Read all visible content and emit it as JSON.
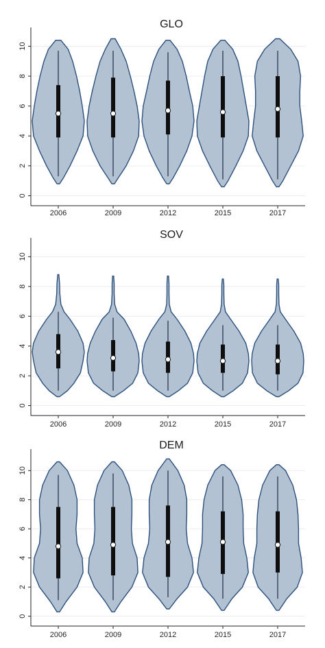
{
  "chart_data": [
    {
      "type": "violin",
      "title": "GLO",
      "categories": [
        "2006",
        "2009",
        "2012",
        "2015",
        "2017"
      ],
      "yticks": [
        "0",
        "2",
        "4",
        "6",
        "8",
        "10"
      ],
      "ylim": [
        -0.3,
        10.8
      ],
      "grid": true,
      "series": [
        {
          "min": 0.8,
          "max": 10.4,
          "whisker_low": 1.3,
          "whisker_high": 9.7,
          "q1": 3.9,
          "median": 5.5,
          "q3": 7.4,
          "density": [
            [
              0.8,
              0.05
            ],
            [
              1.2,
              0.2
            ],
            [
              2,
              0.45
            ],
            [
              3,
              0.72
            ],
            [
              4,
              0.95
            ],
            [
              5,
              1.0
            ],
            [
              6,
              0.92
            ],
            [
              7,
              0.82
            ],
            [
              8,
              0.7
            ],
            [
              9,
              0.55
            ],
            [
              9.8,
              0.38
            ],
            [
              10.4,
              0.1
            ]
          ]
        },
        {
          "min": 0.8,
          "max": 10.5,
          "whisker_low": 1.3,
          "whisker_high": 9.7,
          "q1": 3.9,
          "median": 5.5,
          "q3": 7.9,
          "density": [
            [
              0.8,
              0.05
            ],
            [
              1.2,
              0.2
            ],
            [
              2,
              0.5
            ],
            [
              3,
              0.78
            ],
            [
              4,
              0.98
            ],
            [
              5,
              1.0
            ],
            [
              6,
              0.92
            ],
            [
              7,
              0.8
            ],
            [
              8,
              0.66
            ],
            [
              9,
              0.5
            ],
            [
              9.8,
              0.3
            ],
            [
              10.5,
              0.08
            ]
          ]
        },
        {
          "min": 0.8,
          "max": 10.4,
          "whisker_low": 1.3,
          "whisker_high": 9.6,
          "q1": 4.1,
          "median": 5.7,
          "q3": 7.7,
          "density": [
            [
              0.8,
              0.05
            ],
            [
              1.2,
              0.2
            ],
            [
              2,
              0.45
            ],
            [
              3,
              0.72
            ],
            [
              4,
              0.92
            ],
            [
              5,
              1.0
            ],
            [
              6,
              0.95
            ],
            [
              7,
              0.82
            ],
            [
              8,
              0.7
            ],
            [
              9,
              0.55
            ],
            [
              9.8,
              0.35
            ],
            [
              10.4,
              0.08
            ]
          ]
        },
        {
          "min": 0.6,
          "max": 10.4,
          "whisker_low": 1.1,
          "whisker_high": 9.7,
          "q1": 3.9,
          "median": 5.6,
          "q3": 8.0,
          "density": [
            [
              0.6,
              0.05
            ],
            [
              1,
              0.2
            ],
            [
              2,
              0.5
            ],
            [
              3,
              0.78
            ],
            [
              4,
              0.98
            ],
            [
              5,
              1.0
            ],
            [
              6,
              0.9
            ],
            [
              7,
              0.8
            ],
            [
              8,
              0.7
            ],
            [
              9,
              0.58
            ],
            [
              9.8,
              0.38
            ],
            [
              10.4,
              0.08
            ]
          ]
        },
        {
          "min": 0.6,
          "max": 10.5,
          "whisker_low": 1.1,
          "whisker_high": 9.7,
          "q1": 3.9,
          "median": 5.8,
          "q3": 8.0,
          "density": [
            [
              0.6,
              0.05
            ],
            [
              1,
              0.2
            ],
            [
              2,
              0.5
            ],
            [
              3,
              0.8
            ],
            [
              4,
              0.98
            ],
            [
              5,
              0.92
            ],
            [
              6,
              0.85
            ],
            [
              7,
              0.85
            ],
            [
              8,
              0.88
            ],
            [
              9,
              0.78
            ],
            [
              9.8,
              0.5
            ],
            [
              10.5,
              0.08
            ]
          ]
        }
      ]
    },
    {
      "type": "violin",
      "title": "SOV",
      "categories": [
        "2006",
        "2009",
        "2012",
        "2015",
        "2017"
      ],
      "yticks": [
        "0",
        "2",
        "4",
        "6",
        "8",
        "10"
      ],
      "ylim": [
        -0.3,
        10.8
      ],
      "grid": true,
      "series": [
        {
          "min": 0.6,
          "max": 8.8,
          "whisker_low": 1.0,
          "whisker_high": 6.3,
          "q1": 2.5,
          "median": 3.6,
          "q3": 4.8,
          "density": [
            [
              0.6,
              0.05
            ],
            [
              1,
              0.35
            ],
            [
              1.5,
              0.6
            ],
            [
              2.2,
              0.85
            ],
            [
              3,
              0.95
            ],
            [
              3.6,
              1.0
            ],
            [
              4.2,
              0.95
            ],
            [
              5,
              0.75
            ],
            [
              5.8,
              0.45
            ],
            [
              6.3,
              0.22
            ],
            [
              6.8,
              0.1
            ],
            [
              7.5,
              0.06
            ],
            [
              8.2,
              0.05
            ],
            [
              8.8,
              0.02
            ]
          ]
        },
        {
          "min": 0.6,
          "max": 8.7,
          "whisker_low": 1.0,
          "whisker_high": 5.9,
          "q1": 2.3,
          "median": 3.2,
          "q3": 4.4,
          "density": [
            [
              0.6,
              0.05
            ],
            [
              1,
              0.4
            ],
            [
              1.5,
              0.75
            ],
            [
              2.2,
              0.95
            ],
            [
              3,
              1.0
            ],
            [
              3.5,
              0.98
            ],
            [
              4.2,
              0.88
            ],
            [
              5,
              0.68
            ],
            [
              5.8,
              0.42
            ],
            [
              6.3,
              0.15
            ],
            [
              6.8,
              0.06
            ],
            [
              7.5,
              0.04
            ],
            [
              8.2,
              0.04
            ],
            [
              8.7,
              0.02
            ]
          ]
        },
        {
          "min": 0.6,
          "max": 8.7,
          "whisker_low": 1.0,
          "whisker_high": 5.7,
          "q1": 2.2,
          "median": 3.1,
          "q3": 4.3,
          "density": [
            [
              0.6,
              0.05
            ],
            [
              1,
              0.4
            ],
            [
              1.5,
              0.75
            ],
            [
              2.2,
              0.95
            ],
            [
              3,
              1.0
            ],
            [
              3.5,
              0.98
            ],
            [
              4.2,
              0.88
            ],
            [
              5,
              0.65
            ],
            [
              5.8,
              0.35
            ],
            [
              6.3,
              0.12
            ],
            [
              6.8,
              0.05
            ],
            [
              7.5,
              0.04
            ],
            [
              8.2,
              0.04
            ],
            [
              8.7,
              0.02
            ]
          ]
        },
        {
          "min": 0.6,
          "max": 8.5,
          "whisker_low": 1.0,
          "whisker_high": 5.4,
          "q1": 2.2,
          "median": 3.0,
          "q3": 4.1,
          "density": [
            [
              0.6,
              0.05
            ],
            [
              1,
              0.4
            ],
            [
              1.5,
              0.75
            ],
            [
              2.2,
              0.95
            ],
            [
              3,
              1.0
            ],
            [
              3.5,
              0.98
            ],
            [
              4.2,
              0.88
            ],
            [
              5,
              0.62
            ],
            [
              5.8,
              0.3
            ],
            [
              6.3,
              0.1
            ],
            [
              6.8,
              0.05
            ],
            [
              7.5,
              0.04
            ],
            [
              8.1,
              0.04
            ],
            [
              8.5,
              0.02
            ]
          ]
        },
        {
          "min": 0.6,
          "max": 8.5,
          "whisker_low": 1.0,
          "whisker_high": 5.4,
          "q1": 2.1,
          "median": 3.0,
          "q3": 4.1,
          "density": [
            [
              0.6,
              0.05
            ],
            [
              1,
              0.42
            ],
            [
              1.5,
              0.78
            ],
            [
              2.2,
              0.97
            ],
            [
              3,
              1.0
            ],
            [
              3.5,
              0.98
            ],
            [
              4.2,
              0.88
            ],
            [
              5,
              0.62
            ],
            [
              5.8,
              0.3
            ],
            [
              6.3,
              0.1
            ],
            [
              6.8,
              0.05
            ],
            [
              7.5,
              0.04
            ],
            [
              8.1,
              0.04
            ],
            [
              8.5,
              0.02
            ]
          ]
        }
      ]
    },
    {
      "type": "violin",
      "title": "DEM",
      "categories": [
        "2006",
        "2009",
        "2012",
        "2015",
        "2017"
      ],
      "yticks": [
        "0",
        "2",
        "4",
        "6",
        "8",
        "10"
      ],
      "ylim": [
        -0.3,
        11.0
      ],
      "grid": true,
      "series": [
        {
          "min": 0.3,
          "max": 10.6,
          "whisker_low": 1.1,
          "whisker_high": 9.7,
          "q1": 2.6,
          "median": 4.8,
          "q3": 7.5,
          "density": [
            [
              0.3,
              0.05
            ],
            [
              1,
              0.3
            ],
            [
              2,
              0.72
            ],
            [
              3,
              0.95
            ],
            [
              4,
              0.92
            ],
            [
              5,
              0.72
            ],
            [
              6,
              0.68
            ],
            [
              7,
              0.72
            ],
            [
              8,
              0.72
            ],
            [
              9,
              0.6
            ],
            [
              10,
              0.35
            ],
            [
              10.6,
              0.05
            ]
          ]
        },
        {
          "min": 0.3,
          "max": 10.6,
          "whisker_low": 1.1,
          "whisker_high": 9.8,
          "q1": 2.8,
          "median": 4.9,
          "q3": 7.5,
          "density": [
            [
              0.3,
              0.05
            ],
            [
              1,
              0.3
            ],
            [
              2,
              0.72
            ],
            [
              3,
              0.95
            ],
            [
              4,
              0.92
            ],
            [
              5,
              0.74
            ],
            [
              6,
              0.7
            ],
            [
              7,
              0.72
            ],
            [
              8,
              0.72
            ],
            [
              9,
              0.6
            ],
            [
              10,
              0.35
            ],
            [
              10.6,
              0.05
            ]
          ]
        },
        {
          "min": 0.5,
          "max": 10.8,
          "whisker_low": 1.3,
          "whisker_high": 10.0,
          "q1": 2.7,
          "median": 5.1,
          "q3": 7.6,
          "density": [
            [
              0.5,
              0.05
            ],
            [
              1.2,
              0.35
            ],
            [
              2,
              0.75
            ],
            [
              3,
              0.98
            ],
            [
              4,
              0.92
            ],
            [
              5,
              0.75
            ],
            [
              6,
              0.7
            ],
            [
              7,
              0.72
            ],
            [
              8,
              0.72
            ],
            [
              9,
              0.62
            ],
            [
              10,
              0.38
            ],
            [
              10.8,
              0.05
            ]
          ]
        },
        {
          "min": 0.4,
          "max": 10.4,
          "whisker_low": 1.2,
          "whisker_high": 9.6,
          "q1": 2.9,
          "median": 5.1,
          "q3": 7.2,
          "density": [
            [
              0.4,
              0.05
            ],
            [
              1.2,
              0.35
            ],
            [
              2,
              0.75
            ],
            [
              3,
              0.98
            ],
            [
              4,
              0.92
            ],
            [
              5,
              0.8
            ],
            [
              6,
              0.78
            ],
            [
              7,
              0.78
            ],
            [
              8,
              0.72
            ],
            [
              9,
              0.58
            ],
            [
              10,
              0.3
            ],
            [
              10.4,
              0.05
            ]
          ]
        },
        {
          "min": 0.4,
          "max": 10.4,
          "whisker_low": 1.2,
          "whisker_high": 9.6,
          "q1": 3.0,
          "median": 4.9,
          "q3": 7.2,
          "density": [
            [
              0.4,
              0.05
            ],
            [
              1.2,
              0.35
            ],
            [
              2,
              0.75
            ],
            [
              3,
              0.95
            ],
            [
              4,
              0.9
            ],
            [
              5,
              0.8
            ],
            [
              6,
              0.8
            ],
            [
              7,
              0.78
            ],
            [
              8,
              0.72
            ],
            [
              9,
              0.58
            ],
            [
              10,
              0.3
            ],
            [
              10.4,
              0.05
            ]
          ]
        }
      ]
    }
  ]
}
